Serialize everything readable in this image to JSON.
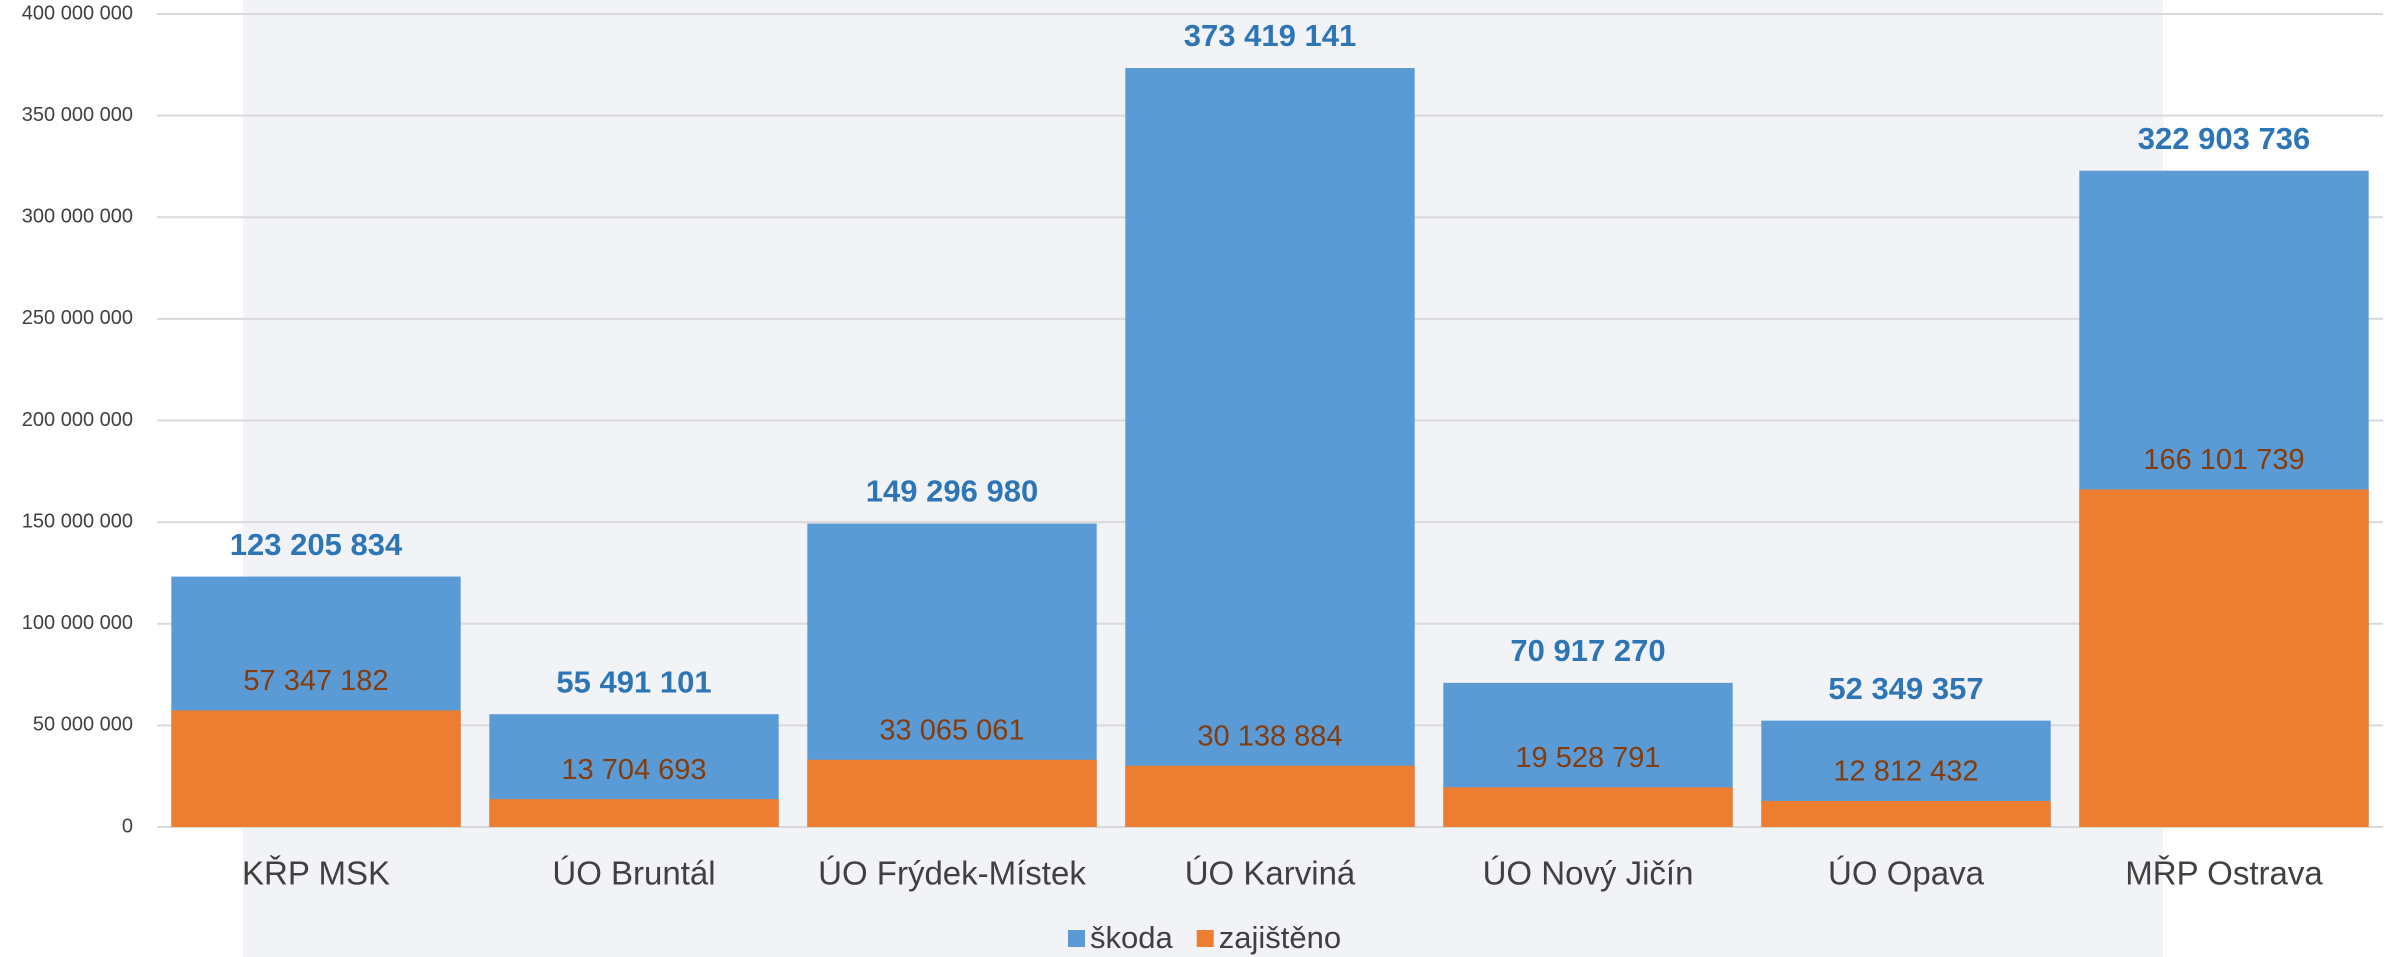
{
  "chart_data": {
    "type": "bar",
    "categories": [
      "KŘP MSK",
      "ÚO Bruntál",
      "ÚO Frýdek-Místek",
      "ÚO Karviná",
      "ÚO Nový Jičín",
      "ÚO Opava",
      "MŘP Ostrava"
    ],
    "series": [
      {
        "name": "škoda",
        "color": "#5b9bd5",
        "values": [
          123205834,
          55491101,
          149296980,
          373419141,
          70917270,
          52349357,
          322903736
        ],
        "value_labels": [
          "123 205 834",
          "55 491 101",
          "149 296 980",
          "373 419 141",
          "70 917 270",
          "52 349 357",
          "322 903 736"
        ]
      },
      {
        "name": "zajištěno",
        "color": "#ed7d31",
        "values": [
          57347182,
          13704693,
          33065061,
          30138884,
          19528791,
          12812432,
          166101739
        ],
        "value_labels": [
          "57 347 182",
          "13 704 693",
          "33 065 061",
          "30 138 884",
          "19 528 791",
          "12 812 432",
          "166 101 739"
        ]
      }
    ],
    "ylim": [
      0,
      400000000
    ],
    "yticks": [
      0,
      {
        "value": 50000000,
        "label": "50 000 000"
      },
      {
        "value": 100000000,
        "label": "100 000 000"
      },
      {
        "value": 150000000,
        "label": "150 000 000"
      },
      {
        "value": 200000000,
        "label": "200 000 000"
      },
      {
        "value": 250000000,
        "label": "250 000 000"
      },
      {
        "value": 300000000,
        "label": "300 000 000"
      },
      {
        "value": 350000000,
        "label": "350 000 000"
      },
      {
        "value": 400000000,
        "label": "400 000 000"
      }
    ],
    "grid": true,
    "legend": "bottom"
  }
}
